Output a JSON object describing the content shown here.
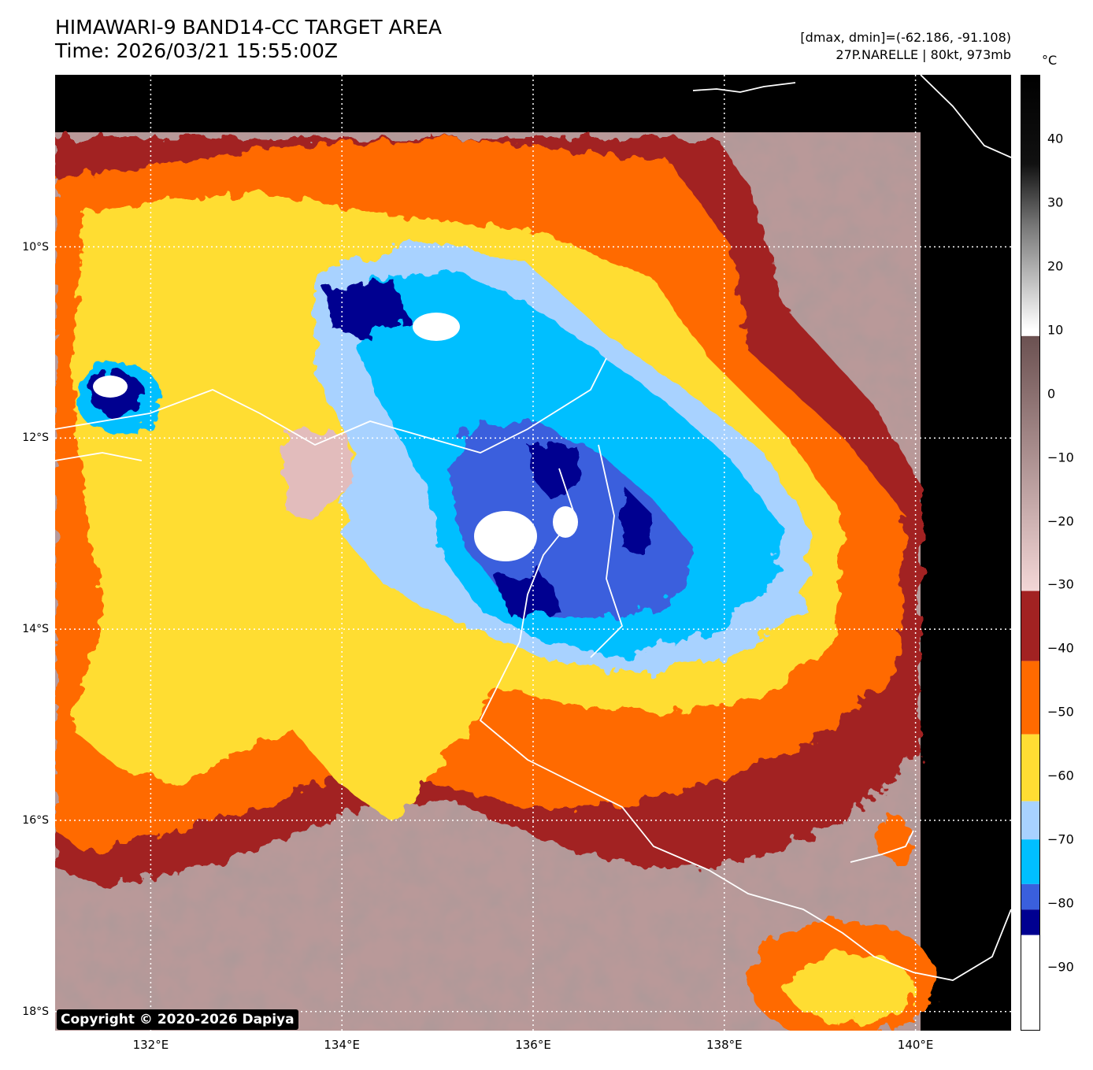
{
  "header": {
    "title_line1": "HIMAWARI-9 BAND14-CC TARGET AREA",
    "title_line2": "Time: 2026/03/21 15:55:00Z",
    "meta_line1": "[dmax, dmin]=(-62.186, -91.108)",
    "meta_line2": "27P.NARELLE | 80kt, 973mb"
  },
  "map": {
    "lat_labels": [
      "10°S",
      "12°S",
      "14°S",
      "16°S",
      "18°S"
    ],
    "lon_labels": [
      "132°E",
      "134°E",
      "136°E",
      "138°E",
      "140°E"
    ],
    "lat_values": [
      -10,
      -12,
      -14,
      -16,
      -18
    ],
    "lon_values": [
      132,
      134,
      136,
      138,
      140
    ],
    "lat_range": [
      -18.2,
      -8.2
    ],
    "lon_range": [
      131,
      141
    ]
  },
  "colorbar": {
    "unit": "°C",
    "ticks": [
      "40",
      "30",
      "20",
      "10",
      "0",
      "−10",
      "−20",
      "−30",
      "−40",
      "−50",
      "−60",
      "−70",
      "−80",
      "−90"
    ],
    "tick_values": [
      40,
      30,
      20,
      10,
      0,
      -10,
      -20,
      -30,
      -40,
      -50,
      -60,
      -70,
      -80,
      -90
    ],
    "range": [
      -100,
      50
    ],
    "colors": {
      "warm_top": "#000000",
      "warm_mid": "#7a7a7a",
      "white_10": "#ffffff",
      "brown_9": "#6b5151",
      "pink_minus30": "#f3d6d6",
      "dark_red": "#a22222",
      "orange": "#ff6a00",
      "yellow": "#ffdd33",
      "light_blue": "#a8d2ff",
      "cyan": "#00bfff",
      "royal_blue": "#3a5fdd",
      "navy": "#000090",
      "coldest": "#ffffff"
    }
  },
  "copyright": "Copyright © 2020-2026 Dapiya"
}
